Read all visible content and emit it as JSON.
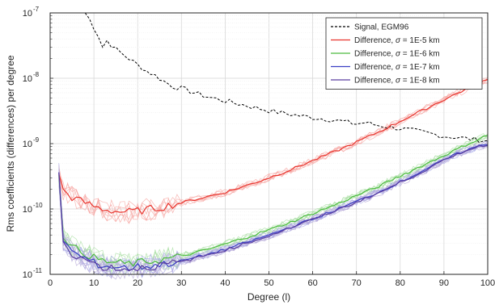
{
  "chart_data": {
    "type": "line",
    "xlabel": "Degree (l)",
    "ylabel": "Rms coefficients (differences) per degree",
    "xlim": [
      0,
      100
    ],
    "ylim": [
      1e-11,
      1e-07
    ],
    "yscale": "log",
    "grid": true,
    "legend_position": "top-right",
    "x_ticks": [
      {
        "value": 0,
        "label": "0"
      },
      {
        "value": 10,
        "label": "10"
      },
      {
        "value": 20,
        "label": "20"
      },
      {
        "value": 30,
        "label": "30"
      },
      {
        "value": 40,
        "label": "40"
      },
      {
        "value": 50,
        "label": "50"
      },
      {
        "value": 60,
        "label": "60"
      },
      {
        "value": 70,
        "label": "70"
      },
      {
        "value": 80,
        "label": "80"
      },
      {
        "value": 90,
        "label": "90"
      },
      {
        "value": 100,
        "label": "100"
      }
    ],
    "y_ticks": [
      {
        "value": 1e-11,
        "base": "10",
        "exp": "-11"
      },
      {
        "value": 1e-10,
        "base": "10",
        "exp": "-10"
      },
      {
        "value": 1e-09,
        "base": "10",
        "exp": "-9"
      },
      {
        "value": 1e-08,
        "base": "10",
        "exp": "-8"
      },
      {
        "value": 1e-07,
        "base": "10",
        "exp": "-7"
      }
    ],
    "series": [
      {
        "name": "Signal, EGM96",
        "legend_prefix": "Signal, EGM96",
        "legend_sigma": "",
        "color": "#000000",
        "dashed": true,
        "x": [
          8,
          9,
          10,
          11,
          12,
          13,
          14,
          15,
          16,
          18,
          20,
          22,
          24,
          26,
          28,
          30,
          33,
          36,
          40,
          45,
          50,
          55,
          60,
          65,
          70,
          72,
          75,
          80,
          85,
          90,
          95,
          100
        ],
        "y": [
          1e-07,
          8e-08,
          6e-08,
          4.5e-08,
          3e-08,
          3.8e-08,
          3.2e-08,
          2.8e-08,
          2.5e-08,
          2e-08,
          1.6e-08,
          1.3e-08,
          1.1e-08,
          9e-09,
          7.5e-09,
          7e-09,
          6e-09,
          5.2e-09,
          4.5e-09,
          3.8e-09,
          3.2e-09,
          2.8e-09,
          2.5e-09,
          2.3e-09,
          2e-09,
          2.1e-09,
          1.9e-09,
          1.7e-09,
          1.5e-09,
          1.3e-09,
          1.2e-09,
          1.1e-09
        ]
      },
      {
        "name": "Difference, σ = 1E-5 km",
        "legend_prefix": "Difference, ",
        "legend_sigma": " = 1E-5 km",
        "color": "#e8332c",
        "band_color": "#f6a5a1",
        "dashed": false,
        "x": [
          2,
          3,
          5,
          8,
          10,
          12,
          15,
          18,
          20,
          25,
          30,
          35,
          40,
          45,
          50,
          55,
          60,
          65,
          70,
          75,
          80,
          85,
          90,
          95,
          100
        ],
        "y": [
          3.6e-10,
          1.9e-10,
          1.5e-10,
          1.25e-10,
          1.1e-10,
          1e-10,
          9.2e-11,
          9e-11,
          9.3e-11,
          1.05e-10,
          1.25e-10,
          1.5e-10,
          1.8e-10,
          2.3e-10,
          3e-10,
          4e-10,
          5.5e-10,
          7.5e-10,
          1.05e-09,
          1.5e-09,
          2.2e-09,
          3.2e-09,
          4.7e-09,
          6.8e-09,
          9.5e-09
        ]
      },
      {
        "name": "Difference, σ = 1E-6 km",
        "legend_prefix": "Difference, ",
        "legend_sigma": " = 1E-6 km",
        "color": "#4cbb3f",
        "band_color": "#a9dea2",
        "dashed": false,
        "x": [
          2,
          3,
          5,
          8,
          10,
          12,
          15,
          18,
          20,
          25,
          30,
          35,
          40,
          45,
          50,
          55,
          60,
          65,
          70,
          75,
          80,
          85,
          90,
          95,
          100
        ],
        "y": [
          3.5e-10,
          4e-11,
          2.6e-11,
          2.1e-11,
          1.8e-11,
          1.6e-11,
          1.5e-11,
          1.45e-11,
          1.5e-11,
          1.65e-11,
          1.9e-11,
          2.3e-11,
          2.9e-11,
          3.7e-11,
          4.8e-11,
          6.3e-11,
          8.5e-11,
          1.15e-10,
          1.6e-10,
          2.2e-10,
          3.2e-10,
          4.6e-10,
          6.6e-10,
          9.5e-10,
          1.35e-09
        ]
      },
      {
        "name": "Difference, σ = 1E-7 km",
        "legend_prefix": "Difference, ",
        "legend_sigma": " = 1E-7 km",
        "color": "#3a3fc4",
        "band_color": "#a8aae8",
        "dashed": false,
        "x": [
          2,
          3,
          5,
          8,
          10,
          12,
          15,
          18,
          20,
          25,
          30,
          35,
          40,
          45,
          50,
          55,
          60,
          65,
          70,
          75,
          80,
          85,
          90,
          95,
          100
        ],
        "y": [
          3.4e-10,
          3.5e-11,
          2.2e-11,
          1.75e-11,
          1.5e-11,
          1.35e-11,
          1.3e-11,
          1.25e-11,
          1.3e-11,
          1.4e-11,
          1.6e-11,
          1.95e-11,
          2.4e-11,
          3.1e-11,
          4e-11,
          5.3e-11,
          7e-11,
          9.5e-11,
          1.3e-10,
          1.8e-10,
          2.6e-10,
          3.8e-10,
          5.6e-10,
          8e-10,
          1e-09
        ]
      },
      {
        "name": "Difference, σ = 1E-8 km",
        "legend_prefix": "Difference, ",
        "legend_sigma": " = 1E-8 km",
        "color": "#5a3ea0",
        "band_color": "#b6a9d8",
        "dashed": false,
        "x": [
          2,
          3,
          5,
          8,
          10,
          12,
          15,
          18,
          20,
          25,
          30,
          35,
          40,
          45,
          50,
          55,
          60,
          65,
          70,
          75,
          80,
          85,
          90,
          95,
          100
        ],
        "y": [
          3.3e-10,
          3.3e-11,
          2.1e-11,
          1.7e-11,
          1.45e-11,
          1.3e-11,
          1.25e-11,
          1.2e-11,
          1.25e-11,
          1.35e-11,
          1.55e-11,
          1.9e-11,
          2.35e-11,
          3e-11,
          3.9e-11,
          5.2e-11,
          6.9e-11,
          9.3e-11,
          1.27e-10,
          1.75e-10,
          2.55e-10,
          3.7e-10,
          5.5e-10,
          7.9e-10,
          9.8e-10
        ]
      }
    ]
  }
}
